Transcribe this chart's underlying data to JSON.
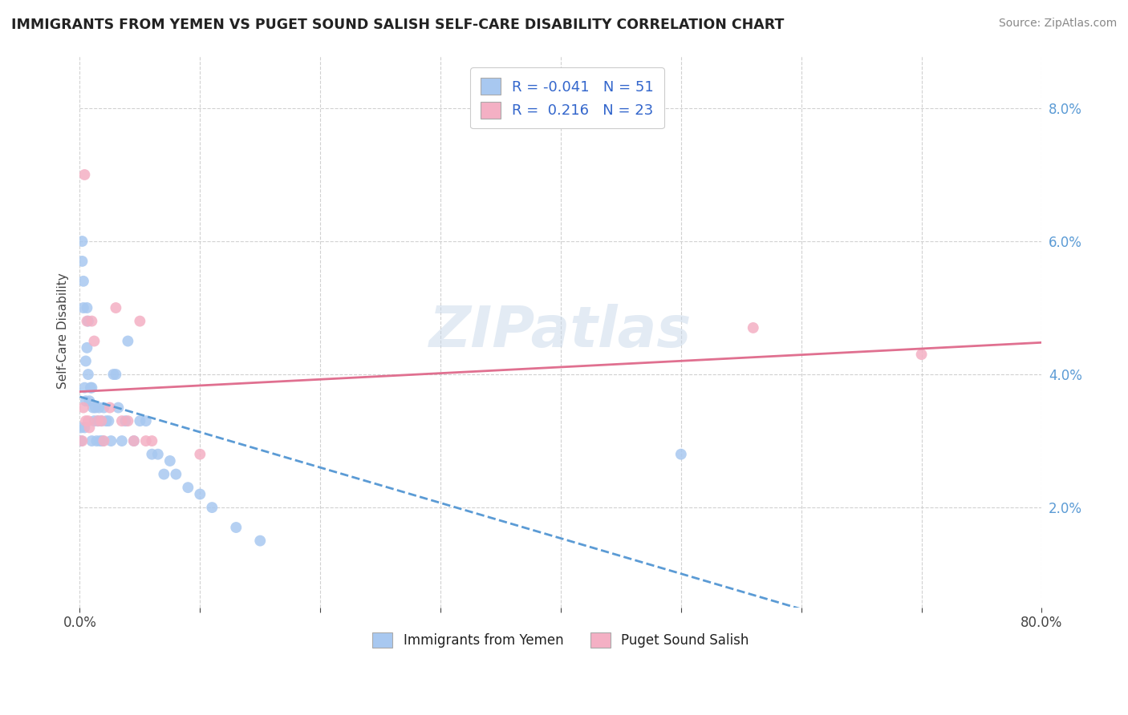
{
  "title": "IMMIGRANTS FROM YEMEN VS PUGET SOUND SALISH SELF-CARE DISABILITY CORRELATION CHART",
  "source": "Source: ZipAtlas.com",
  "ylabel": "Self-Care Disability",
  "legend_label1": "Immigrants from Yemen",
  "legend_label2": "Puget Sound Salish",
  "blue_R": -0.041,
  "blue_N": 51,
  "pink_R": 0.216,
  "pink_N": 23,
  "blue_fill": "#A8C8F0",
  "pink_fill": "#F4B0C4",
  "blue_line": "#5B9BD5",
  "pink_line": "#E07090",
  "xlim": [
    0.0,
    0.8
  ],
  "ylim": [
    0.005,
    0.088
  ],
  "x_ticks": [
    0.0,
    0.1,
    0.2,
    0.3,
    0.4,
    0.5,
    0.6,
    0.7,
    0.8
  ],
  "y_ticks": [
    0.02,
    0.04,
    0.06,
    0.08
  ],
  "blue_x": [
    0.001,
    0.001,
    0.002,
    0.002,
    0.003,
    0.003,
    0.004,
    0.004,
    0.005,
    0.005,
    0.006,
    0.006,
    0.007,
    0.007,
    0.008,
    0.009,
    0.01,
    0.01,
    0.011,
    0.012,
    0.013,
    0.014,
    0.015,
    0.016,
    0.017,
    0.018,
    0.019,
    0.02,
    0.022,
    0.024,
    0.026,
    0.028,
    0.03,
    0.032,
    0.035,
    0.038,
    0.04,
    0.045,
    0.05,
    0.055,
    0.06,
    0.065,
    0.07,
    0.075,
    0.08,
    0.09,
    0.1,
    0.11,
    0.13,
    0.15,
    0.5
  ],
  "blue_y": [
    0.03,
    0.032,
    0.057,
    0.06,
    0.054,
    0.05,
    0.038,
    0.032,
    0.042,
    0.036,
    0.05,
    0.044,
    0.048,
    0.04,
    0.036,
    0.038,
    0.038,
    0.03,
    0.035,
    0.033,
    0.035,
    0.03,
    0.033,
    0.035,
    0.03,
    0.033,
    0.03,
    0.035,
    0.033,
    0.033,
    0.03,
    0.04,
    0.04,
    0.035,
    0.03,
    0.033,
    0.045,
    0.03,
    0.033,
    0.033,
    0.028,
    0.028,
    0.025,
    0.027,
    0.025,
    0.023,
    0.022,
    0.02,
    0.017,
    0.015,
    0.028
  ],
  "pink_x": [
    0.002,
    0.003,
    0.004,
    0.005,
    0.006,
    0.007,
    0.008,
    0.01,
    0.012,
    0.015,
    0.018,
    0.02,
    0.025,
    0.03,
    0.035,
    0.04,
    0.045,
    0.05,
    0.055,
    0.06,
    0.1,
    0.56,
    0.7
  ],
  "pink_y": [
    0.03,
    0.035,
    0.07,
    0.033,
    0.048,
    0.033,
    0.032,
    0.048,
    0.045,
    0.033,
    0.033,
    0.03,
    0.035,
    0.05,
    0.033,
    0.033,
    0.03,
    0.048,
    0.03,
    0.03,
    0.028,
    0.047,
    0.043
  ],
  "watermark": "ZIPatlas",
  "bg_color": "#ffffff",
  "grid_color": "#cccccc",
  "title_color": "#222222",
  "source_color": "#888888",
  "legend_R_N_color": "#3366CC",
  "right_tick_color": "#5B9BD5"
}
